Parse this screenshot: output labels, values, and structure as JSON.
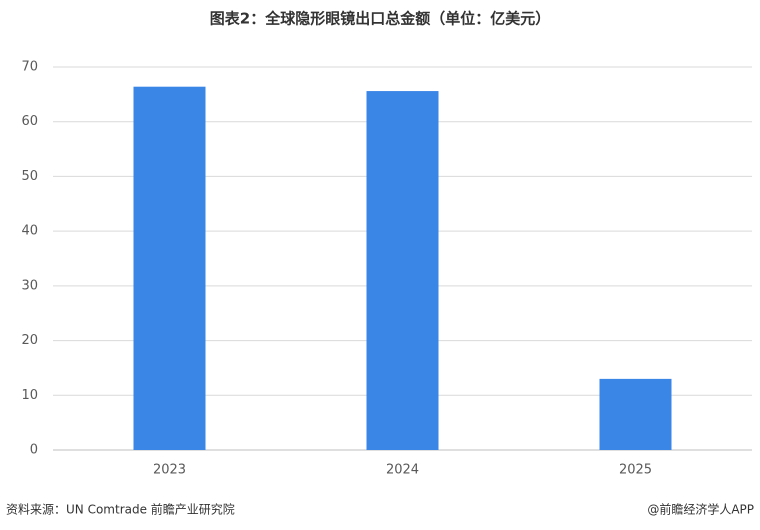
{
  "chart_data": {
    "type": "bar",
    "title": "图表2：全球隐形眼镜出口总金额（单位：亿美元）",
    "categories": [
      "2023",
      "2024",
      "2025"
    ],
    "values": [
      66.4,
      65.6,
      13.0
    ],
    "color": "#3a86e6",
    "ylim": [
      0,
      70
    ],
    "yticks": [
      0,
      10,
      20,
      30,
      40,
      50,
      60,
      70
    ],
    "grid": true,
    "source": "资料来源：UN Comtrade  前瞻产业研究院",
    "credit": "@前瞻经济学人APP"
  }
}
